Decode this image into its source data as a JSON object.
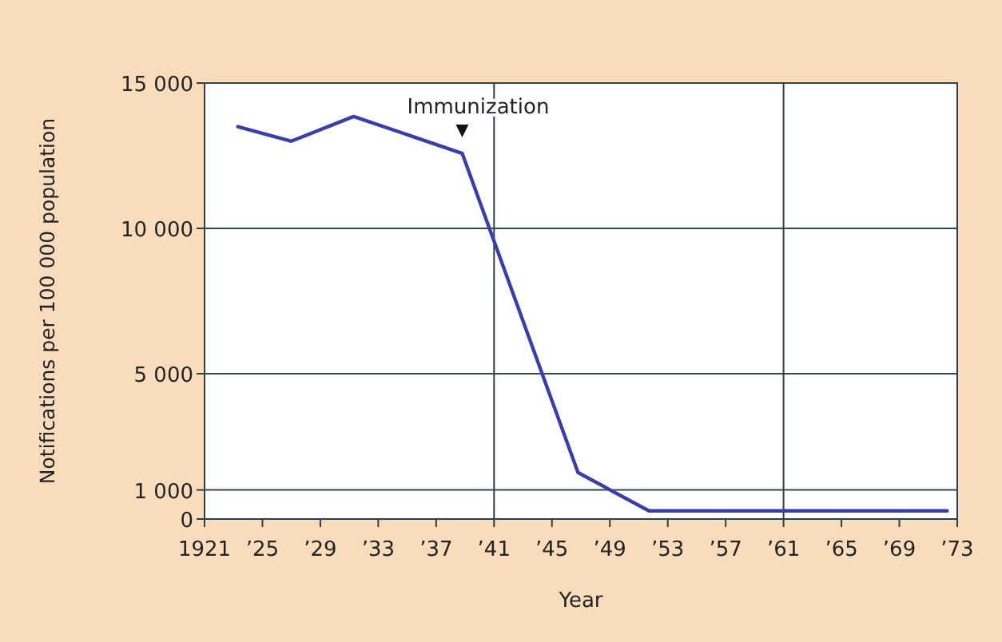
{
  "chart_data": {
    "type": "line",
    "xlabel": "Year",
    "ylabel": "Notifications per 100 000 population",
    "x": [
      1923.3,
      1927,
      1931.3,
      1938.8,
      1946.8,
      1951.7,
      1972.3
    ],
    "series": [
      {
        "color": "#3a3ea8",
        "values": [
          13500,
          13000,
          13850,
          12580,
          1600,
          280,
          280
        ]
      }
    ],
    "xlim": [
      1921,
      1973
    ],
    "xticks": [
      1921,
      {
        "value": 1925,
        "label": "’25"
      },
      {
        "value": 1929,
        "label": "’29"
      },
      {
        "value": 1933,
        "label": "’33"
      },
      {
        "value": 1937,
        "label": "’37"
      },
      {
        "value": 1941,
        "label": "’41"
      },
      {
        "value": 1945,
        "label": "’45"
      },
      {
        "value": 1949,
        "label": "’49"
      },
      {
        "value": 1953,
        "label": "’53"
      },
      {
        "value": 1957,
        "label": "’57"
      },
      {
        "value": 1961,
        "label": "’61"
      },
      {
        "value": 1965,
        "label": "’65"
      },
      {
        "value": 1969,
        "label": "’69"
      },
      {
        "value": 1973,
        "label": "’73"
      }
    ],
    "ylim": [
      0,
      15000
    ],
    "yticks": [
      0,
      {
        "value": 1000,
        "label": "1 000"
      },
      {
        "value": 5000,
        "label": "5 000"
      },
      {
        "value": 10000,
        "label": "10 000"
      },
      {
        "value": 15000,
        "label": "15 000"
      }
    ],
    "grid": "y",
    "ref_lines": [
      {
        "axis": "x",
        "value": 1941,
        "color": "#2f3f48"
      },
      {
        "axis": "x",
        "value": 1961,
        "color": "#2f3f48"
      }
    ],
    "annotations": [
      {
        "text": "Immunization",
        "x": 1938.8,
        "y": 12580
      }
    ],
    "marker": "none",
    "line_style": "solid"
  }
}
